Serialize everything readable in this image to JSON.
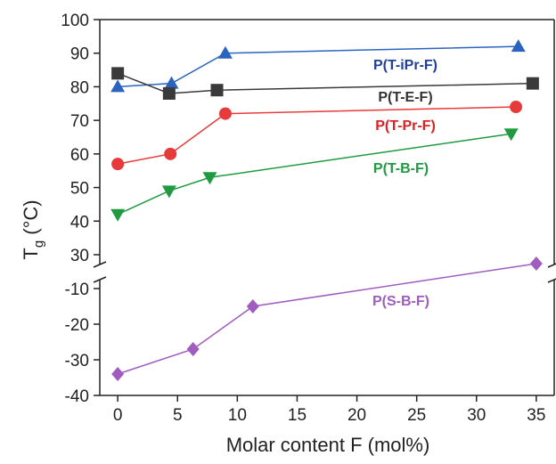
{
  "chart_data": {
    "type": "line",
    "xlabel": "Molar content F (mol%)",
    "ylabel": {
      "main": "T",
      "sub": "g",
      "rest": " (°C)"
    },
    "xlim": [
      -1.5,
      36.5
    ],
    "x_ticks": [
      "0",
      "5",
      "10",
      "15",
      "20",
      "25",
      "30",
      "35"
    ],
    "y_upper_ticks": [
      "30",
      "40",
      "50",
      "60",
      "70",
      "80",
      "90",
      "100"
    ],
    "y_lower_ticks": [
      "-40",
      "-30",
      "-20",
      "-10"
    ],
    "axis_break": "between 30 and -10 on the y axis",
    "grid": false,
    "series": [
      {
        "name": "P(T-iPr-F)",
        "color": "#2a64c0",
        "marker": "triangle-up",
        "label_color": "#1f3f9f",
        "x": [
          0,
          4.5,
          9,
          33.5
        ],
        "y": [
          80,
          81,
          90,
          92
        ]
      },
      {
        "name": "P(T-E-F)",
        "color": "#3a3a3a",
        "marker": "square",
        "label_color": "#333333",
        "x": [
          0,
          4.3,
          8.3,
          34.7
        ],
        "y": [
          84,
          78,
          79,
          81
        ]
      },
      {
        "name": "P(T-Pr-F)",
        "color": "#e83a3a",
        "marker": "circle",
        "label_color": "#e02020",
        "x": [
          0,
          4.4,
          9,
          33.3
        ],
        "y": [
          57,
          60,
          72,
          74
        ]
      },
      {
        "name": "P(T-B-F)",
        "color": "#1f9a40",
        "marker": "triangle-down",
        "label_color": "#1f9a40",
        "x": [
          0,
          4.3,
          7.7,
          32.9
        ],
        "y": [
          42,
          49,
          53,
          66
        ]
      },
      {
        "name": "P(S-B-F)",
        "color": "#a05cbf",
        "marker": "diamond",
        "label_color": "#a05cbf",
        "x": [
          0,
          6.3,
          11.3,
          35
        ],
        "y": [
          -34,
          -27,
          -15,
          -3
        ]
      }
    ]
  }
}
